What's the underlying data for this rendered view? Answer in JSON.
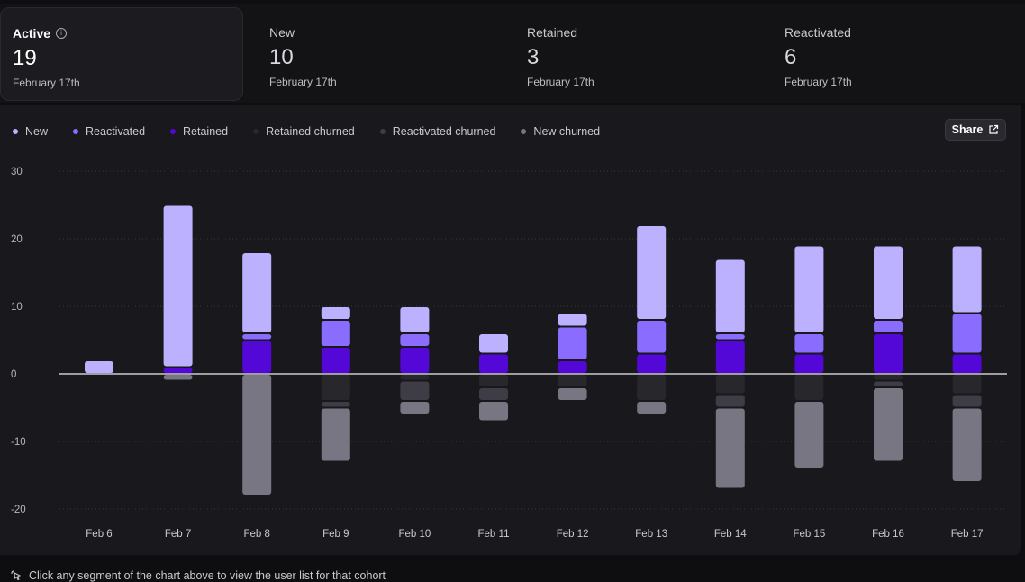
{
  "stats": [
    {
      "label": "Active",
      "value": "19",
      "date": "February 17th"
    },
    {
      "label": "New",
      "value": "10",
      "date": "February 17th"
    },
    {
      "label": "Retained",
      "value": "3",
      "date": "February 17th"
    },
    {
      "label": "Reactivated",
      "value": "6",
      "date": "February 17th"
    }
  ],
  "legend": [
    {
      "label": "New",
      "color": "#bbb1ff"
    },
    {
      "label": "Reactivated",
      "color": "#8a6cff"
    },
    {
      "label": "Retained",
      "color": "#5308d8"
    },
    {
      "label": "Retained churned",
      "color": "#28272c"
    },
    {
      "label": "Reactivated churned",
      "color": "#3e3d46"
    },
    {
      "label": "New churned",
      "color": "#777682"
    }
  ],
  "share_label": "Share",
  "footer_text": "Click any segment of the chart above to view the user list for that cohort",
  "chart_data": {
    "type": "bar",
    "stacked": true,
    "categories": [
      "Feb 6",
      "Feb 7",
      "Feb 8",
      "Feb 9",
      "Feb 10",
      "Feb 11",
      "Feb 12",
      "Feb 13",
      "Feb 14",
      "Feb 15",
      "Feb 16",
      "Feb 17"
    ],
    "yticks": [
      30,
      20,
      10,
      0,
      -10,
      -20
    ],
    "ylim": [
      -21,
      31
    ],
    "grid": true,
    "series": [
      {
        "name": "Retained",
        "color": "#5308d8",
        "values": [
          0,
          1,
          5,
          4,
          4,
          3,
          2,
          3,
          5,
          3,
          6,
          3
        ]
      },
      {
        "name": "Reactivated",
        "color": "#8a6cff",
        "values": [
          0,
          0,
          1,
          4,
          2,
          0,
          5,
          5,
          1,
          3,
          2,
          6
        ]
      },
      {
        "name": "New",
        "color": "#bbb1ff",
        "values": [
          2,
          24,
          12,
          2,
          4,
          3,
          2,
          14,
          11,
          13,
          11,
          10
        ]
      },
      {
        "name": "Retained churned",
        "color": "#28272c",
        "values": [
          0,
          0,
          0,
          -4,
          -1,
          -2,
          -2,
          -4,
          -3,
          -4,
          -1,
          -3
        ]
      },
      {
        "name": "Reactivated churned",
        "color": "#3e3d46",
        "values": [
          0,
          0,
          0,
          -1,
          -3,
          -2,
          0,
          0,
          -2,
          0,
          -1,
          -2
        ]
      },
      {
        "name": "New churned",
        "color": "#777682",
        "values": [
          0,
          -1,
          -18,
          -8,
          -2,
          -3,
          -2,
          -2,
          -12,
          -10,
          -11,
          -11
        ]
      }
    ]
  }
}
